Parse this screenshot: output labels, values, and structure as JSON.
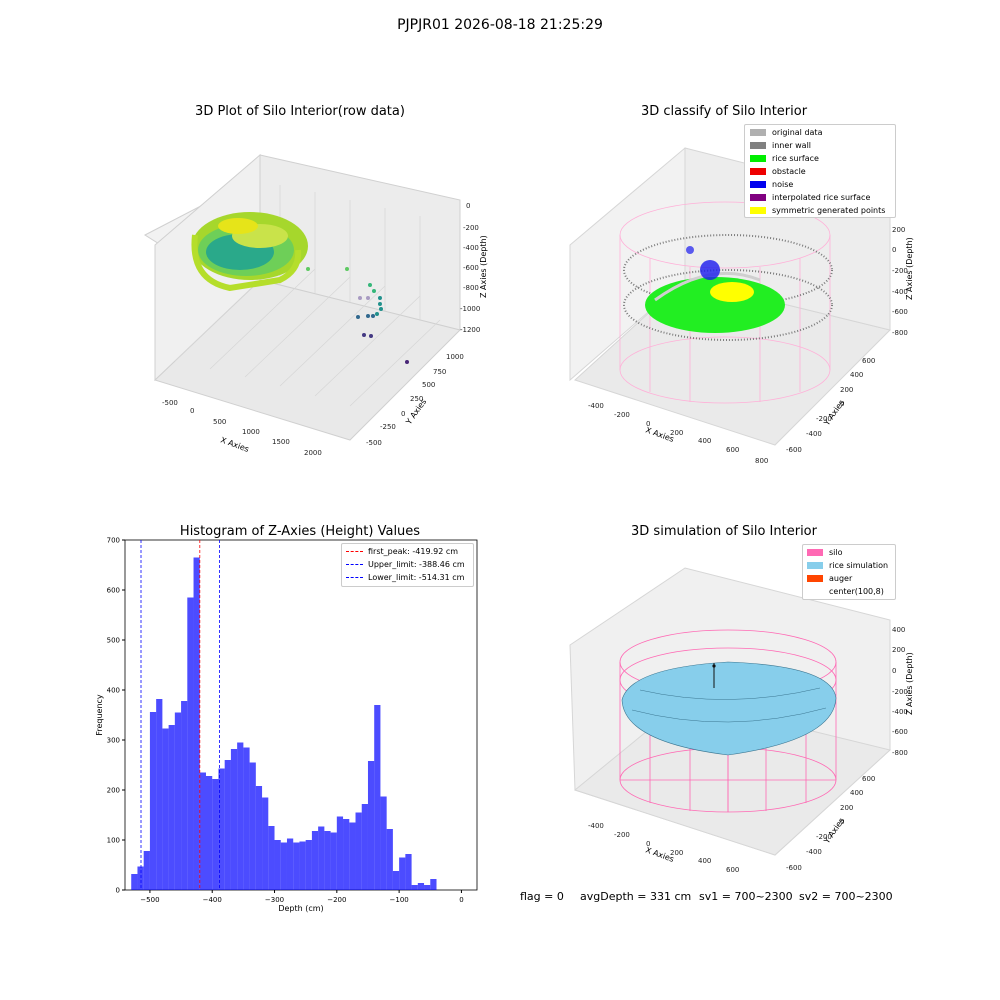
{
  "figure": {
    "suptitle": "PJPJR01 2026-08-18 21:25:29",
    "footer": {
      "flag": "flag = 0",
      "avg_depth": "avgDepth = 331 cm",
      "sv1": "sv1 = 700~2300",
      "sv2": "sv2 = 700~2300"
    }
  },
  "panels": [
    {
      "title": "3D Plot of Silo Interior(row data)",
      "xlabel": "X Axies",
      "ylabel": "Y Axies",
      "zlabel": "Z Axies (Depth)",
      "xticks": [
        "-500",
        "0",
        "500",
        "1000",
        "1500",
        "2000"
      ],
      "yticks": [
        "-500",
        "-250",
        "0",
        "250",
        "500",
        "750",
        "1000"
      ],
      "zticks": [
        "0",
        "-200",
        "-400",
        "-600",
        "-800",
        "-1000",
        "-1200"
      ]
    },
    {
      "title": "3D classify of Silo Interior",
      "xlabel": "X Axies",
      "ylabel": "Y Axies",
      "zlabel": "Z Axies (Depth)",
      "xticks": [
        "-400",
        "-200",
        "0",
        "200",
        "400",
        "600",
        "800"
      ],
      "yticks": [
        "-600",
        "-400",
        "-200",
        "0",
        "200",
        "400",
        "600"
      ],
      "zticks": [
        "200",
        "0",
        "-200",
        "-400",
        "-600",
        "-800"
      ],
      "legend": [
        {
          "label": "original data",
          "color": "#b0b0b0"
        },
        {
          "label": "inner wall",
          "color": "#808080"
        },
        {
          "label": "rice surface",
          "color": "#00ee00"
        },
        {
          "label": "obstacle",
          "color": "#ee0000"
        },
        {
          "label": "noise",
          "color": "#0000ee"
        },
        {
          "label": "interpolated rice surface",
          "color": "#800080"
        },
        {
          "label": "symmetric generated points",
          "color": "#ffff00"
        }
      ]
    },
    {
      "title": "3D simulation of Silo Interior",
      "xlabel": "X Axies",
      "ylabel": "Y Axies",
      "zlabel": "Z Axies (Depth)",
      "xticks": [
        "-400",
        "-200",
        "0",
        "200",
        "400",
        "600"
      ],
      "yticks": [
        "-600",
        "-400",
        "-200",
        "0",
        "200",
        "400",
        "600"
      ],
      "zticks": [
        "400",
        "200",
        "0",
        "-200",
        "-400",
        "-600",
        "-800"
      ],
      "legend": [
        {
          "label": "silo",
          "color": "#ff69b4"
        },
        {
          "label": "rice simulation",
          "color": "#87ceeb"
        },
        {
          "label": "auger",
          "color": "#ff4500"
        },
        {
          "label": "center(100,8)",
          "color": "#ffffff"
        }
      ]
    }
  ],
  "chart_data": {
    "type": "bar",
    "title": "Histogram of Z-Axies (Height) Values",
    "xlabel": "Depth (cm)",
    "ylabel": "Frequency",
    "xlim": [
      -540,
      25
    ],
    "ylim": [
      0,
      700
    ],
    "xticks": [
      -500,
      -400,
      -300,
      -200,
      -100,
      0
    ],
    "yticks": [
      0,
      100,
      200,
      300,
      400,
      500,
      600,
      700
    ],
    "bar_color": "#0000ff",
    "bin_start": -530,
    "bin_width": 10,
    "values": [
      32,
      47,
      78,
      356,
      382,
      323,
      330,
      355,
      378,
      585,
      665,
      235,
      228,
      222,
      243,
      260,
      282,
      295,
      285,
      255,
      208,
      185,
      128,
      100,
      95,
      103,
      95,
      97,
      100,
      118,
      127,
      118,
      115,
      147,
      142,
      135,
      155,
      172,
      258,
      370,
      187,
      122,
      38,
      65,
      72,
      10,
      14,
      10,
      22
    ],
    "vlines": [
      {
        "label": "first_peak: -419.92 cm",
        "x": -419.92,
        "color": "#ff0000"
      },
      {
        "label": "Upper_limit: -388.46 cm",
        "x": -388.46,
        "color": "#0000ff"
      },
      {
        "label": "Lower_limit: -514.31 cm",
        "x": -514.31,
        "color": "#0000ff"
      }
    ],
    "grid": false,
    "legend_position": "top-right"
  }
}
